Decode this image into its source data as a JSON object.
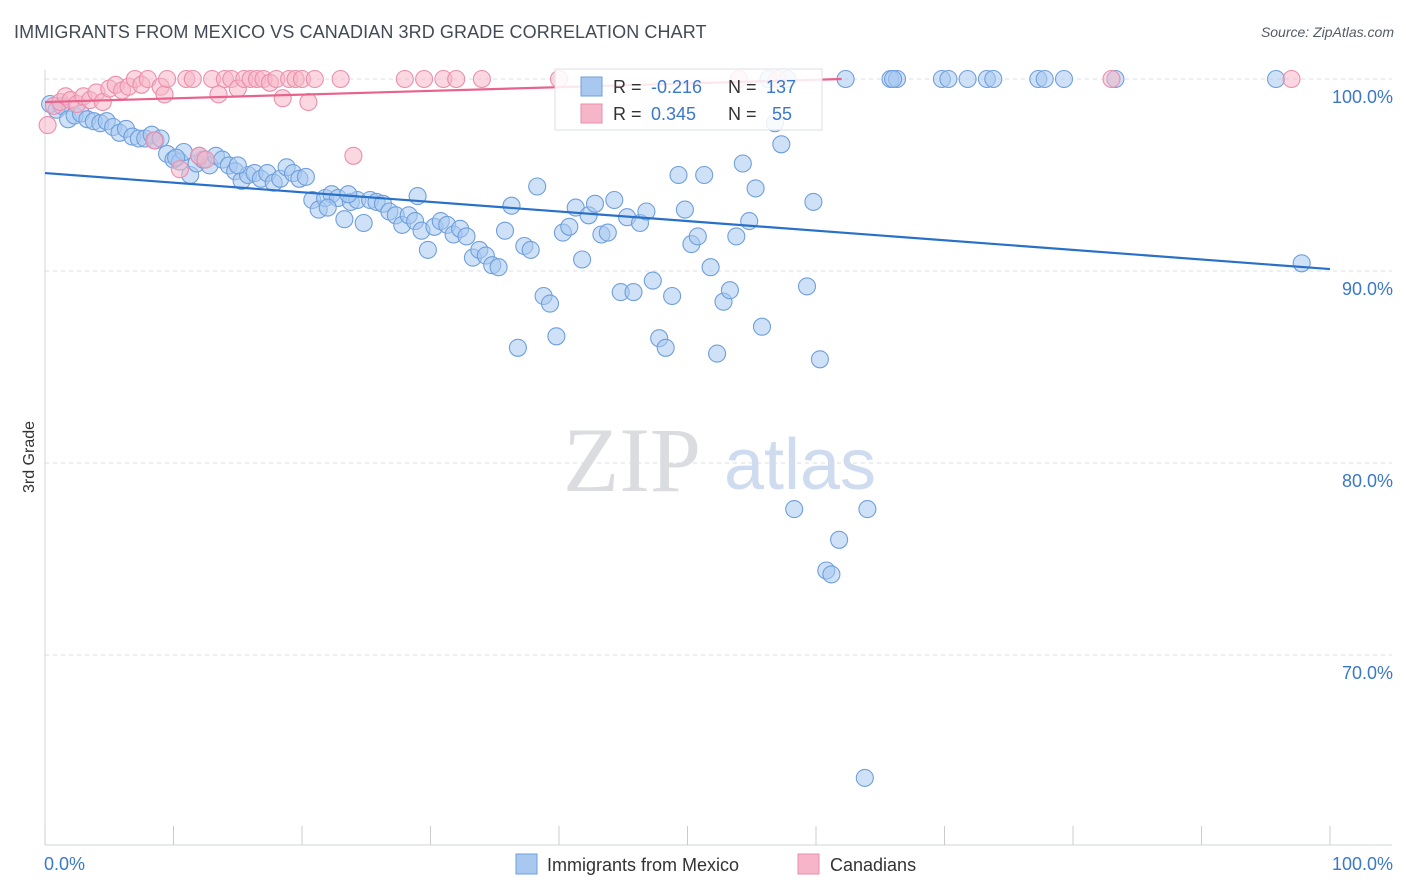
{
  "title": "IMMIGRANTS FROM MEXICO VS CANADIAN 3RD GRADE CORRELATION CHART",
  "source": "Source: ZipAtlas.com",
  "watermark": {
    "zip": "ZIP",
    "atlas": "atlas"
  },
  "legend_box": [
    {
      "r_label": "R =",
      "r_value": "-0.216",
      "n_label": "N =",
      "n_value": "137"
    },
    {
      "r_label": "R =",
      "r_value": "0.345",
      "n_label": "N =",
      "n_value": "55"
    }
  ],
  "bottom_legend": [
    "Immigrants from Mexico",
    "Canadians"
  ],
  "colors": {
    "blue_fill": "#a8c8f0",
    "blue_stroke": "#6f9fdc",
    "blue_line": "#2970c9",
    "pink_fill": "#f6b6c9",
    "pink_stroke": "#ea8fad",
    "pink_line": "#e8628c",
    "axis_label": "#3a78c9",
    "grid": "#d9dde3"
  },
  "chart_data": {
    "type": "scatter",
    "title": "IMMIGRANTS FROM MEXICO VS CANADIAN 3RD GRADE CORRELATION CHART",
    "xlabel": "",
    "ylabel": "3rd Grade",
    "xlim": [
      0,
      100
    ],
    "ylim": [
      62,
      102
    ],
    "x_tick_labels": [
      "0.0%",
      "100.0%"
    ],
    "y_ticks": [
      100,
      90,
      80,
      70
    ],
    "y_tick_labels": [
      "100.0%",
      "90.0%",
      "80.0%",
      "70.0%"
    ],
    "series": [
      {
        "name": "Immigrants from Mexico",
        "r": -0.216,
        "n": 137,
        "trend": {
          "x": [
            0,
            100
          ],
          "y": [
            95.1,
            90.1
          ]
        },
        "points": [
          [
            0.4,
            98.7
          ],
          [
            0.9,
            98.4
          ],
          [
            1.3,
            98.6
          ],
          [
            1.8,
            97.9
          ],
          [
            2.3,
            98.1
          ],
          [
            2.8,
            98.2
          ],
          [
            3.3,
            97.9
          ],
          [
            3.8,
            97.8
          ],
          [
            4.3,
            97.7
          ],
          [
            4.8,
            97.8
          ],
          [
            5.3,
            97.5
          ],
          [
            5.8,
            97.2
          ],
          [
            6.3,
            97.4
          ],
          [
            6.8,
            97.0
          ],
          [
            7.3,
            96.9
          ],
          [
            7.8,
            96.9
          ],
          [
            8.3,
            97.1
          ],
          [
            8.6,
            96.8
          ],
          [
            9.0,
            96.9
          ],
          [
            9.5,
            96.1
          ],
          [
            10.0,
            95.8
          ],
          [
            10.5,
            95.7
          ],
          [
            10.8,
            96.2
          ],
          [
            11.3,
            95.0
          ],
          [
            11.8,
            95.6
          ],
          [
            12.3,
            95.8
          ],
          [
            12.8,
            95.5
          ],
          [
            13.3,
            96.0
          ],
          [
            13.8,
            95.8
          ],
          [
            14.3,
            95.5
          ],
          [
            14.8,
            95.2
          ],
          [
            15.3,
            94.7
          ],
          [
            15.8,
            95.0
          ],
          [
            16.3,
            95.1
          ],
          [
            16.8,
            94.8
          ],
          [
            17.3,
            95.1
          ],
          [
            17.8,
            94.6
          ],
          [
            18.3,
            94.8
          ],
          [
            18.8,
            95.4
          ],
          [
            19.3,
            95.1
          ],
          [
            19.8,
            94.8
          ],
          [
            20.3,
            94.9
          ],
          [
            20.8,
            93.7
          ],
          [
            21.3,
            93.2
          ],
          [
            21.8,
            93.8
          ],
          [
            22.3,
            94.0
          ],
          [
            22.8,
            93.8
          ],
          [
            23.3,
            92.7
          ],
          [
            23.8,
            93.6
          ],
          [
            24.3,
            93.7
          ],
          [
            24.8,
            92.5
          ],
          [
            25.3,
            93.7
          ],
          [
            25.8,
            93.6
          ],
          [
            26.3,
            93.5
          ],
          [
            26.8,
            93.1
          ],
          [
            27.3,
            92.9
          ],
          [
            27.8,
            92.4
          ],
          [
            28.3,
            92.9
          ],
          [
            28.8,
            92.6
          ],
          [
            29.3,
            92.1
          ],
          [
            29.8,
            91.1
          ],
          [
            30.3,
            92.3
          ],
          [
            30.8,
            92.6
          ],
          [
            31.3,
            92.4
          ],
          [
            31.8,
            91.9
          ],
          [
            32.3,
            92.2
          ],
          [
            32.8,
            91.8
          ],
          [
            33.3,
            90.7
          ],
          [
            33.8,
            91.1
          ],
          [
            34.3,
            90.8
          ],
          [
            34.8,
            90.3
          ],
          [
            35.3,
            90.2
          ],
          [
            35.8,
            92.1
          ],
          [
            36.3,
            93.4
          ],
          [
            36.8,
            86.0
          ],
          [
            37.3,
            91.3
          ],
          [
            37.8,
            91.1
          ],
          [
            38.3,
            94.4
          ],
          [
            38.8,
            88.7
          ],
          [
            39.3,
            88.3
          ],
          [
            39.8,
            86.6
          ],
          [
            40.3,
            92.0
          ],
          [
            40.8,
            92.3
          ],
          [
            41.3,
            93.3
          ],
          [
            41.8,
            90.6
          ],
          [
            42.3,
            92.9
          ],
          [
            42.8,
            93.5
          ],
          [
            43.3,
            91.9
          ],
          [
            43.8,
            92.0
          ],
          [
            44.3,
            93.7
          ],
          [
            44.8,
            88.9
          ],
          [
            45.3,
            92.8
          ],
          [
            45.8,
            88.9
          ],
          [
            46.3,
            92.5
          ],
          [
            46.8,
            93.1
          ],
          [
            47.3,
            89.5
          ],
          [
            47.8,
            86.5
          ],
          [
            48.3,
            86.0
          ],
          [
            48.8,
            88.7
          ],
          [
            49.3,
            95.0
          ],
          [
            49.8,
            93.2
          ],
          [
            50.3,
            91.4
          ],
          [
            50.8,
            91.8
          ],
          [
            51.3,
            95.0
          ],
          [
            51.8,
            90.2
          ],
          [
            52.3,
            85.7
          ],
          [
            52.8,
            88.4
          ],
          [
            53.3,
            89.0
          ],
          [
            53.8,
            91.8
          ],
          [
            54.3,
            95.6
          ],
          [
            54.8,
            92.6
          ],
          [
            55.3,
            94.3
          ],
          [
            55.8,
            87.1
          ],
          [
            56.3,
            100.0
          ],
          [
            56.8,
            97.7
          ],
          [
            57.3,
            96.6
          ],
          [
            57.8,
            100.0
          ],
          [
            58.3,
            77.6
          ],
          [
            59.3,
            89.2
          ],
          [
            59.8,
            93.6
          ],
          [
            60.3,
            85.4
          ],
          [
            61.8,
            76.0
          ],
          [
            62.3,
            100.0
          ],
          [
            63.8,
            63.6
          ],
          [
            65.8,
            100.0
          ],
          [
            66.3,
            100.0
          ],
          [
            69.8,
            100.0
          ],
          [
            70.3,
            100.0
          ],
          [
            71.8,
            100.0
          ],
          [
            73.3,
            100.0
          ],
          [
            73.8,
            100.0
          ],
          [
            77.3,
            100.0
          ],
          [
            77.8,
            100.0
          ],
          [
            79.3,
            100.0
          ],
          [
            83.3,
            100.0
          ],
          [
            95.8,
            100.0
          ],
          [
            60.8,
            74.4
          ],
          [
            64.0,
            77.6
          ],
          [
            10.2,
            95.9
          ],
          [
            23.6,
            94.0
          ],
          [
            97.8,
            90.4
          ],
          [
            29.0,
            93.9
          ],
          [
            22.0,
            93.3
          ],
          [
            15.0,
            95.5
          ],
          [
            61.2,
            74.2
          ],
          [
            12.0,
            96.0
          ],
          [
            66.0,
            100.0
          ]
        ]
      },
      {
        "name": "Canadians",
        "r": 0.345,
        "n": 55,
        "trend": {
          "x": [
            0,
            62
          ],
          "y": [
            98.8,
            100.0
          ]
        },
        "points": [
          [
            0.2,
            97.6
          ],
          [
            0.7,
            98.6
          ],
          [
            1.2,
            98.8
          ],
          [
            1.6,
            99.1
          ],
          [
            2.0,
            98.9
          ],
          [
            2.5,
            98.7
          ],
          [
            3.0,
            99.1
          ],
          [
            3.5,
            98.9
          ],
          [
            4.0,
            99.3
          ],
          [
            4.5,
            98.8
          ],
          [
            5.0,
            99.5
          ],
          [
            5.5,
            99.7
          ],
          [
            6.0,
            99.4
          ],
          [
            6.5,
            99.6
          ],
          [
            7.0,
            100.0
          ],
          [
            7.5,
            99.7
          ],
          [
            8.0,
            100.0
          ],
          [
            8.5,
            96.8
          ],
          [
            9.0,
            99.6
          ],
          [
            9.3,
            99.2
          ],
          [
            9.5,
            100.0
          ],
          [
            10.5,
            95.3
          ],
          [
            11.0,
            100.0
          ],
          [
            11.5,
            100.0
          ],
          [
            12.0,
            96.0
          ],
          [
            12.5,
            95.8
          ],
          [
            13.0,
            100.0
          ],
          [
            13.5,
            99.2
          ],
          [
            14.0,
            100.0
          ],
          [
            14.5,
            100.0
          ],
          [
            15.0,
            99.5
          ],
          [
            15.5,
            100.0
          ],
          [
            16.0,
            100.0
          ],
          [
            16.5,
            100.0
          ],
          [
            17.0,
            100.0
          ],
          [
            17.5,
            99.8
          ],
          [
            18.0,
            100.0
          ],
          [
            18.5,
            99.0
          ],
          [
            19.0,
            100.0
          ],
          [
            19.5,
            100.0
          ],
          [
            20.0,
            100.0
          ],
          [
            20.5,
            98.8
          ],
          [
            21.0,
            100.0
          ],
          [
            23.0,
            100.0
          ],
          [
            24.0,
            96.0
          ],
          [
            28.0,
            100.0
          ],
          [
            29.5,
            100.0
          ],
          [
            31.0,
            100.0
          ],
          [
            32.0,
            100.0
          ],
          [
            34.0,
            100.0
          ],
          [
            40.0,
            100.0
          ],
          [
            54.0,
            100.0
          ],
          [
            57.0,
            100.0
          ],
          [
            83.0,
            100.0
          ],
          [
            97.0,
            100.0
          ]
        ]
      }
    ]
  }
}
